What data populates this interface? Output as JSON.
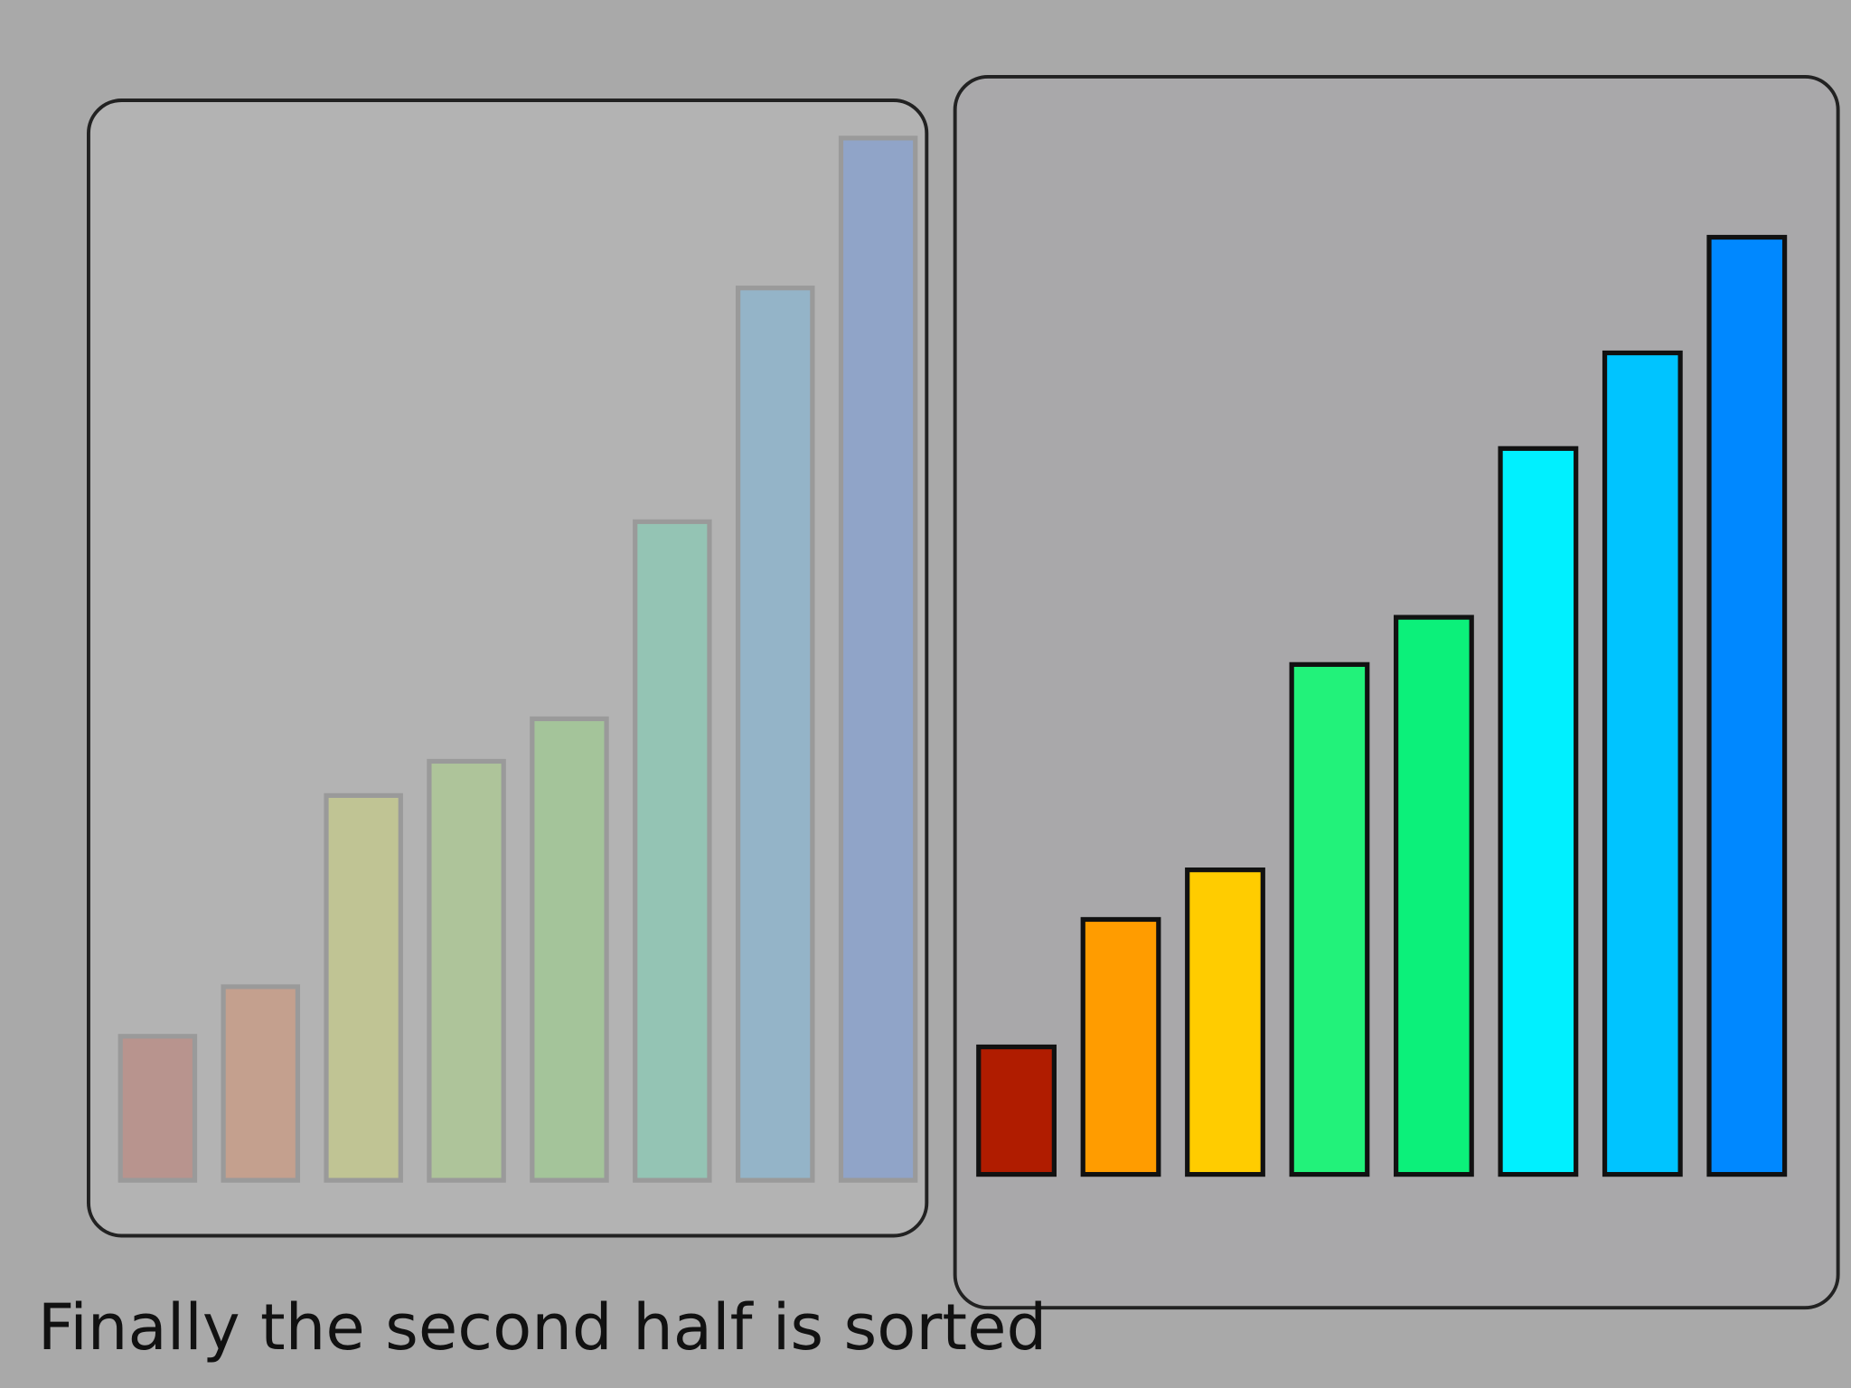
{
  "caption": "Finally the second half is sorted",
  "chart_data": [
    {
      "type": "bar",
      "ylim": [
        0,
        900
      ],
      "values": [
        122,
        164,
        326,
        355,
        391,
        558,
        756,
        883
      ],
      "colors": [
        "#b8948e",
        "#c4a08e",
        "#c0c494",
        "#aec49a",
        "#a4c49a",
        "#94c4b4",
        "#94b4c8",
        "#90a4c8"
      ]
    },
    {
      "type": "bar",
      "ylim": [
        0,
        900
      ],
      "values": [
        108,
        216,
        258,
        432,
        472,
        615,
        696,
        794
      ],
      "colors": [
        "#b01c00",
        "#ff9c00",
        "#ffcc00",
        "#22f27a",
        "#0cf07a",
        "#00f0ff",
        "#00c4ff",
        "#0088ff"
      ]
    }
  ]
}
